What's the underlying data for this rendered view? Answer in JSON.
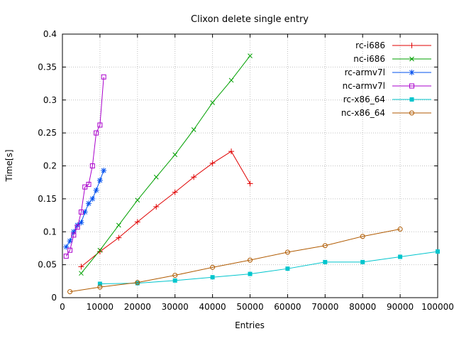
{
  "chart_data": {
    "type": "line",
    "title": "Clixon delete single entry",
    "xlabel": "Entries",
    "ylabel": "Time[s]",
    "xlim": [
      0,
      100000
    ],
    "ylim": [
      0,
      0.4
    ],
    "xticks": [
      0,
      10000,
      20000,
      30000,
      40000,
      50000,
      60000,
      70000,
      80000,
      90000,
      100000
    ],
    "xtick_labels": [
      "0",
      "10000",
      "20000",
      "30000",
      "40000",
      "50000",
      "60000",
      "70000",
      "80000",
      "90000",
      "100000"
    ],
    "yticks": [
      0,
      0.05,
      0.1,
      0.15,
      0.2,
      0.25,
      0.3,
      0.35,
      0.4
    ],
    "ytick_labels": [
      "0",
      "0.05",
      "0.1",
      "0.15",
      "0.2",
      "0.25",
      "0.3",
      "0.35",
      "0.4"
    ],
    "grid": true,
    "legend_position": "top-right-inside",
    "series": [
      {
        "name": "rc-i686",
        "color": "#e00000",
        "marker": "plus",
        "x": [
          5000,
          10000,
          15000,
          20000,
          25000,
          30000,
          35000,
          40000,
          45000,
          50000
        ],
        "y": [
          0.047,
          0.07,
          0.091,
          0.115,
          0.138,
          0.16,
          0.183,
          0.204,
          0.222,
          0.173
        ]
      },
      {
        "name": "nc-i686",
        "color": "#00a000",
        "marker": "cross",
        "x": [
          5000,
          10000,
          15000,
          20000,
          25000,
          30000,
          35000,
          40000,
          45000,
          50000
        ],
        "y": [
          0.037,
          0.072,
          0.11,
          0.148,
          0.183,
          0.217,
          0.255,
          0.296,
          0.33,
          0.367
        ]
      },
      {
        "name": "rc-armv7l",
        "color": "#0050ee",
        "marker": "asterisk",
        "x": [
          1000,
          2000,
          3000,
          4000,
          5000,
          6000,
          7000,
          8000,
          9000,
          10000,
          11000
        ],
        "y": [
          0.077,
          0.086,
          0.1,
          0.11,
          0.114,
          0.13,
          0.143,
          0.15,
          0.163,
          0.178,
          0.193
        ]
      },
      {
        "name": "nc-armv7l",
        "color": "#aa00cc",
        "marker": "square-open",
        "x": [
          1000,
          2000,
          3000,
          4000,
          5000,
          6000,
          7000,
          8000,
          9000,
          10000,
          11000
        ],
        "y": [
          0.063,
          0.072,
          0.095,
          0.107,
          0.13,
          0.168,
          0.172,
          0.2,
          0.25,
          0.262,
          0.335
        ]
      },
      {
        "name": "rc-x86_64",
        "color": "#00c5cd",
        "marker": "square-filled",
        "x": [
          10000,
          20000,
          30000,
          40000,
          50000,
          60000,
          70000,
          80000,
          90000,
          100000
        ],
        "y": [
          0.021,
          0.022,
          0.026,
          0.031,
          0.036,
          0.044,
          0.054,
          0.054,
          0.062,
          0.07
        ]
      },
      {
        "name": "nc-x86_64",
        "color": "#b05a00",
        "marker": "circle-open",
        "x": [
          2000,
          10000,
          20000,
          30000,
          40000,
          50000,
          60000,
          70000,
          80000,
          90000
        ],
        "y": [
          0.009,
          0.016,
          0.023,
          0.034,
          0.046,
          0.057,
          0.069,
          0.079,
          0.093,
          0.104
        ]
      }
    ]
  }
}
